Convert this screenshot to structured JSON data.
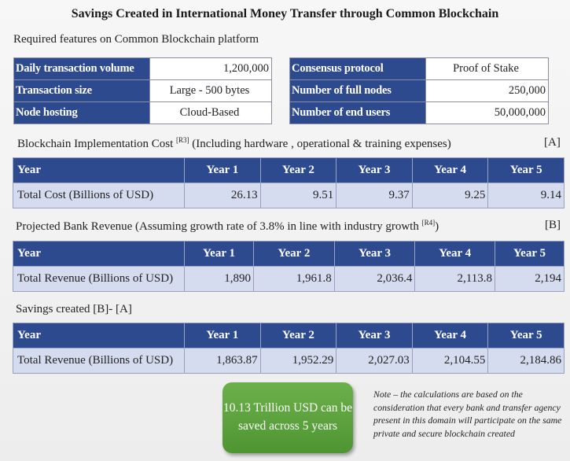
{
  "title": "Savings Created in International Money Transfer through Common Blockchain",
  "features": {
    "label": "Required features on Common Blockchain platform",
    "left": [
      {
        "key": "Daily transaction volume",
        "value": "1,200,000"
      },
      {
        "key": "Transaction size",
        "value": "Large - 500 bytes"
      },
      {
        "key": "Node hosting",
        "value": "Cloud-Based"
      }
    ],
    "right": [
      {
        "key": "Consensus protocol",
        "value": "Proof of Stake"
      },
      {
        "key": "Number of full nodes",
        "value": "250,000"
      },
      {
        "key": "Number of end users",
        "value": "50,000,000"
      }
    ]
  },
  "cost": {
    "label_pre": "Blockchain Implementation Cost ",
    "label_ref": "[R3]",
    "label_post": " (Including hardware , operational & training expenses)",
    "bracket": "[A]",
    "header": [
      "Year",
      "Year 1",
      "Year 2",
      "Year 3",
      "Year 4",
      "Year 5"
    ],
    "row": [
      "Total Cost (Billions of USD)",
      "26.13",
      "9.51",
      "9.37",
      "9.25",
      "9.14"
    ]
  },
  "revenue": {
    "label_pre": "Projected Bank Revenue (Assuming growth rate of 3.8% in line with industry growth ",
    "label_ref": "[R4]",
    "label_post": ")",
    "bracket": "[B]",
    "header": [
      "Year",
      "Year 1",
      "Year 2",
      "Year 3",
      "Year 4",
      "Year 5"
    ],
    "row": [
      "Total Revenue (Billions of USD)",
      "1,890",
      "1,961.8",
      "2,036.4",
      "2,113.8",
      "2,194"
    ]
  },
  "savings": {
    "label": "Savings created [B]- [A]",
    "header": [
      "Year",
      "Year 1",
      "Year 2",
      "Year 3",
      "Year 4",
      "Year 5"
    ],
    "row": [
      "Total Revenue (Billions of USD)",
      "1,863.87",
      "1,952.29",
      "2,027.03",
      "2,104.55",
      "2,184.86"
    ]
  },
  "callout": {
    "line1": "10.13 Trillion USD can be",
    "line2": "saved across 5 years"
  },
  "note": "Note – the calculations are based on the consideration that every bank and transfer agency present in this domain will participate on the same private and secure blockchain created"
}
